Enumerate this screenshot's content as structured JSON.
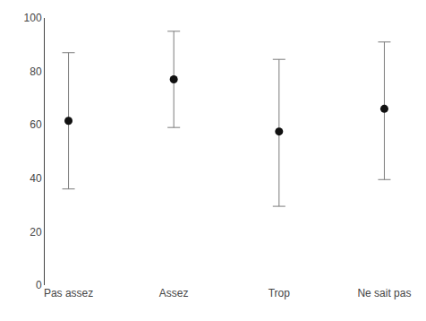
{
  "chart_data": {
    "type": "scatter",
    "categories": [
      "Pas assez",
      "Assez",
      "Trop",
      "Ne sait pas"
    ],
    "values": [
      61.5,
      77.0,
      57.5,
      66.0
    ],
    "ci_lower": [
      36.0,
      59.0,
      29.5,
      39.5
    ],
    "ci_upper": [
      87.0,
      95.0,
      84.5,
      91.0
    ],
    "color": "#111111",
    "marker": "circle",
    "ylim": [
      0,
      100
    ],
    "yticks": [
      0,
      20,
      40,
      60,
      80,
      100
    ],
    "grid": false
  }
}
